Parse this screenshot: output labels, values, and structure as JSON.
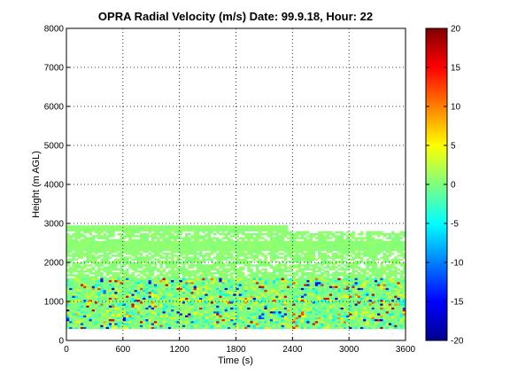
{
  "chart_data": {
    "type": "heatmap",
    "title": "OPRA Radial Velocity (m/s)  Date: 99.9.18, Hour: 22",
    "xlabel": "Time (s)",
    "ylabel": "Height (m AGL)",
    "xlim": [
      0,
      3600
    ],
    "ylim": [
      0,
      8000
    ],
    "xticks": [
      0,
      600,
      1200,
      1800,
      2400,
      3000,
      3600
    ],
    "yticks": [
      0,
      1000,
      2000,
      3000,
      4000,
      5000,
      6000,
      7000,
      8000
    ],
    "grid": true,
    "colorbar": {
      "min": -20,
      "max": 20,
      "ticks": [
        20,
        15,
        10,
        5,
        0,
        -5,
        -10,
        -15,
        -20
      ],
      "colormap": "jet"
    },
    "layers": [
      {
        "y0": 2800,
        "y1": 2950,
        "x0": 0,
        "x1": 2350,
        "value": 0.5
      },
      {
        "y0": 2450,
        "y1": 2800,
        "x0": 0,
        "x1": 3600,
        "value": 0.5,
        "sparse": true
      },
      {
        "y0": 2300,
        "y1": 2550,
        "x0": 0,
        "x1": 3600,
        "value": 0.5
      },
      {
        "y0": 1600,
        "y1": 2300,
        "x0": 0,
        "x1": 3600,
        "value": 0.5,
        "sparse": true
      },
      {
        "y0": 300,
        "y1": 1600,
        "x0": 0,
        "x1": 3600,
        "value": 0.3,
        "variance": "high"
      }
    ]
  }
}
